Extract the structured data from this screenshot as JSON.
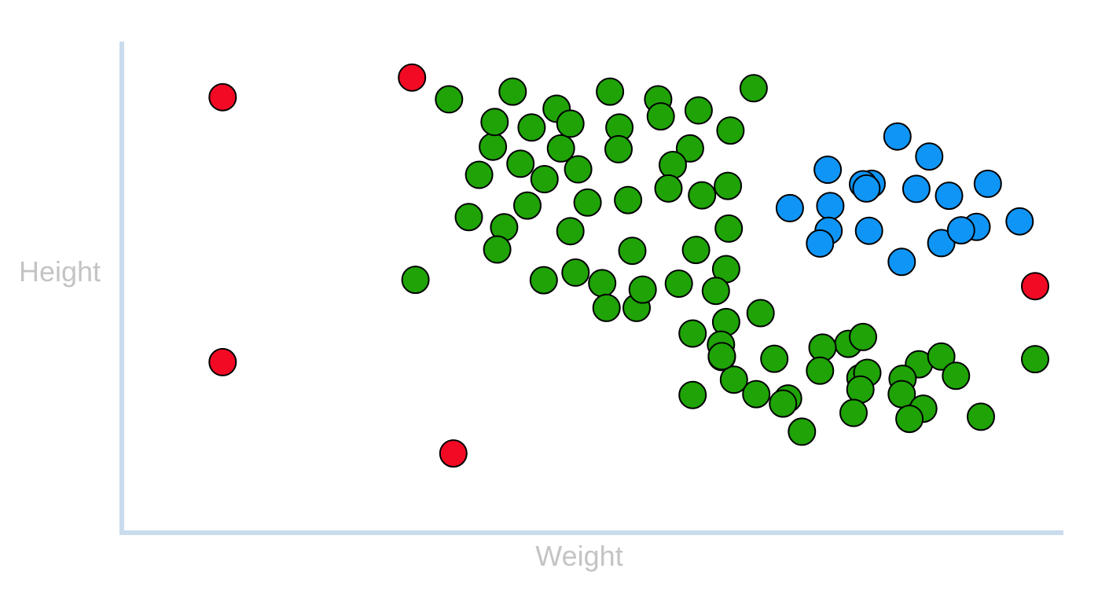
{
  "chart_data": {
    "type": "scatter",
    "title": "",
    "xlabel": "Weight",
    "ylabel": "Height",
    "xlim": [
      0,
      1000
    ],
    "ylim": [
      0,
      1000
    ],
    "grid": false,
    "legend": "none",
    "tick_labels": false,
    "series": [
      {
        "color": "#1fa307",
        "points": [
          [
            319,
            909
          ],
          [
            393,
            927
          ],
          [
            444,
            887
          ],
          [
            506,
            927
          ],
          [
            562,
            909
          ],
          [
            609,
            883
          ],
          [
            673,
            935
          ],
          [
            370,
            798
          ],
          [
            372,
            856
          ],
          [
            415,
            843
          ],
          [
            449,
            794
          ],
          [
            402,
            758
          ],
          [
            460,
            852
          ],
          [
            517,
            843
          ],
          [
            565,
            869
          ],
          [
            516,
            792
          ],
          [
            599,
            794
          ],
          [
            646,
            836
          ],
          [
            579,
            755
          ],
          [
            574,
            700
          ],
          [
            430,
            722
          ],
          [
            410,
            660
          ],
          [
            527,
            673
          ],
          [
            480,
            667
          ],
          [
            469,
            745
          ],
          [
            342,
            633
          ],
          [
            383,
            609
          ],
          [
            354,
            732
          ],
          [
            460,
            600
          ],
          [
            375,
            557
          ],
          [
            643,
            706
          ],
          [
            613,
            684
          ],
          [
            644,
            606
          ],
          [
            532,
            554
          ],
          [
            606,
            556
          ],
          [
            466,
            503
          ],
          [
            641,
            511
          ],
          [
            586,
            477
          ],
          [
            280,
            486
          ],
          [
            429,
            485
          ],
          [
            537,
            420
          ],
          [
            497,
            478
          ],
          [
            544,
            463
          ],
          [
            629,
            460
          ],
          [
            502,
            420
          ],
          [
            641,
            387
          ],
          [
            635,
            334
          ],
          [
            681,
            408
          ],
          [
            602,
            360
          ],
          [
            783,
            336
          ],
          [
            697,
            301
          ],
          [
            753,
            327
          ],
          [
            800,
            352
          ],
          [
            750,
            273
          ],
          [
            865,
            288
          ],
          [
            891,
            306
          ],
          [
            797,
            256
          ],
          [
            713,
            208
          ],
          [
            636,
            305
          ],
          [
            805,
            268
          ],
          [
            846,
            254
          ],
          [
            908,
            261
          ],
          [
            650,
            252
          ],
          [
            602,
            216
          ],
          [
            636,
            307
          ],
          [
            845,
            218
          ],
          [
            707,
            196
          ],
          [
            797,
            229
          ],
          [
            870,
            184
          ],
          [
            789,
            174
          ],
          [
            854,
            160
          ],
          [
            937,
            165
          ],
          [
            729,
            130
          ],
          [
            676,
            218
          ],
          [
            1000,
            300
          ]
        ]
      },
      {
        "color": "#0f95f6",
        "points": [
          [
            759,
            744
          ],
          [
            810,
            711
          ],
          [
            862,
            699
          ],
          [
            877,
            775
          ],
          [
            840,
            822
          ],
          [
            800,
            710
          ],
          [
            715,
            654
          ],
          [
            762,
            659
          ],
          [
            804,
            700
          ],
          [
            900,
            683
          ],
          [
            760,
            601
          ],
          [
            807,
            601
          ],
          [
            932,
            610
          ],
          [
            750,
            571
          ],
          [
            845,
            528
          ],
          [
            891,
            572
          ],
          [
            914,
            602
          ],
          [
            982,
            623
          ],
          [
            945,
            711
          ]
        ]
      },
      {
        "color": "#f20a24",
        "points": [
          [
            56,
            914
          ],
          [
            276,
            960
          ],
          [
            1000,
            471
          ],
          [
            56,
            293
          ],
          [
            324,
            79
          ]
        ]
      }
    ]
  }
}
